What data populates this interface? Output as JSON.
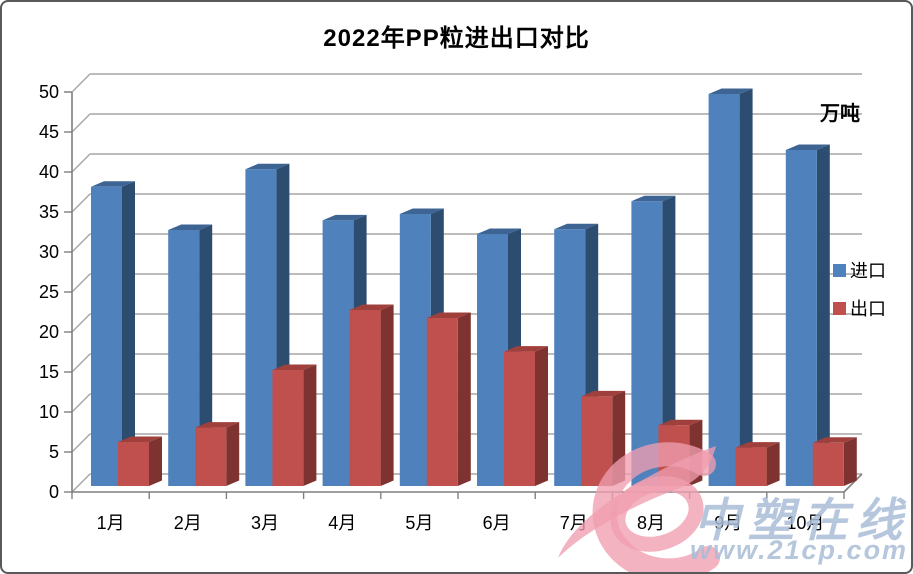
{
  "chart_data": {
    "type": "bar",
    "style": "3d-clustered-column",
    "title": "2022年PP粒进出口对比",
    "unit": "万吨",
    "categories": [
      "1月",
      "2月",
      "3月",
      "4月",
      "5月",
      "6月",
      "7月",
      "8月",
      "9月",
      "10月"
    ],
    "series": [
      {
        "id": "import",
        "name": "进口",
        "color": "#4f81bd",
        "top_color": "#3d6493",
        "side_color": "#2d4d70",
        "values": [
          37.4,
          32.0,
          39.6,
          33.2,
          34.0,
          31.5,
          32.1,
          35.6,
          49.0,
          42.0
        ]
      },
      {
        "id": "export",
        "name": "出口",
        "color": "#c0504d",
        "top_color": "#9f403d",
        "side_color": "#7f3330",
        "values": [
          5.5,
          7.3,
          14.5,
          22.0,
          21.0,
          16.8,
          11.2,
          7.6,
          4.8,
          5.4
        ]
      }
    ],
    "y_ticks": [
      0,
      5,
      10,
      15,
      20,
      25,
      30,
      35,
      40,
      45,
      50
    ],
    "ylim": [
      0,
      50
    ],
    "grid": true,
    "legend_position": "right",
    "gridline_color": "#a6a6a6",
    "axis_color": "#7f7f7f",
    "label_color": "#000000"
  },
  "watermark": {
    "line1": "中塑在线",
    "line2": "www.21cp.com",
    "logo_color": "#ef9db0",
    "text_color": "#a9bdd8"
  }
}
